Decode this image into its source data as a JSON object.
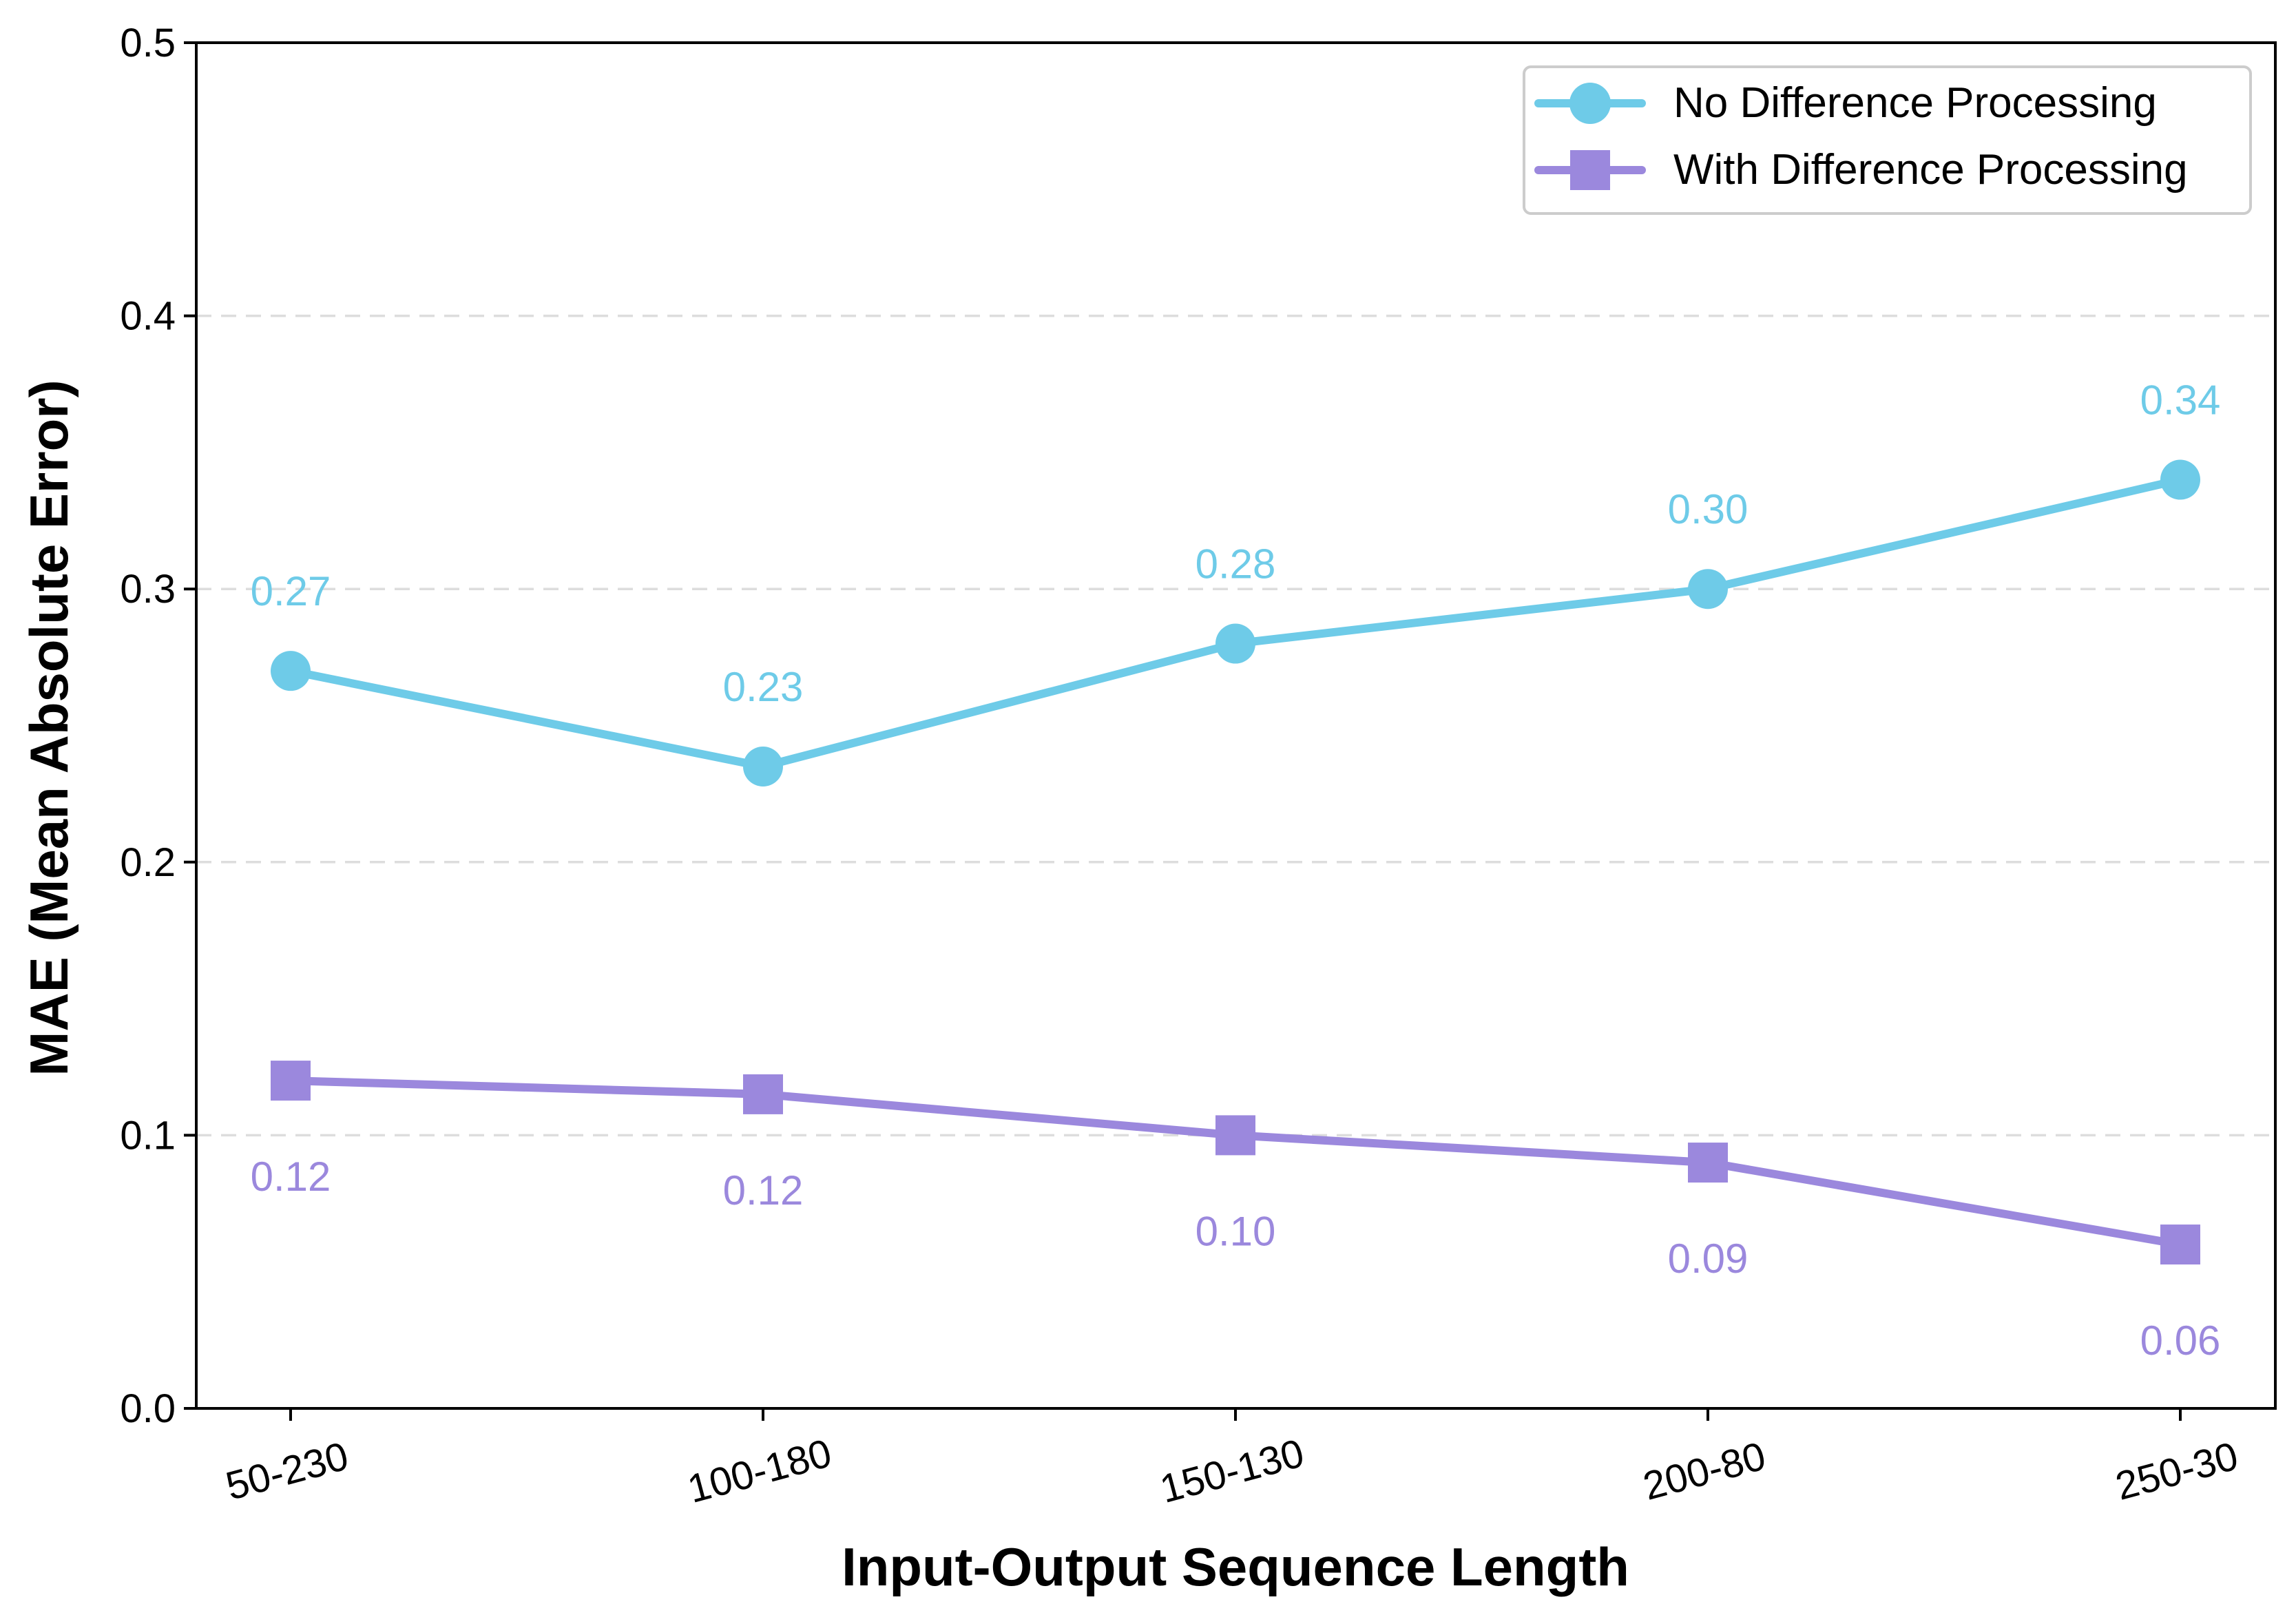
{
  "chart_data": {
    "type": "line",
    "title": "",
    "xlabel": "Input-Output Sequence Length",
    "ylabel": "MAE (Mean Absolute Error)",
    "categories": [
      "50-230",
      "100-180",
      "150-130",
      "200-80",
      "250-30"
    ],
    "ylim": [
      0,
      0.5
    ],
    "yticks": [
      "0.0",
      "0.1",
      "0.2",
      "0.3",
      "0.4",
      "0.5"
    ],
    "grid": "y-dashed",
    "legend_position": "top-right",
    "series": [
      {
        "name": "No Difference Processing",
        "marker": "circle",
        "color": "#6ecbe8",
        "values": [
          0.27,
          0.235,
          0.28,
          0.3,
          0.34
        ],
        "labels": [
          "0.27",
          "0.23",
          "0.28",
          "0.30",
          "0.34"
        ],
        "label_position": "above"
      },
      {
        "name": "With Difference Processing",
        "marker": "square",
        "color": "#9b88dd",
        "values": [
          0.12,
          0.115,
          0.1,
          0.09,
          0.06
        ],
        "labels": [
          "0.12",
          "0.12",
          "0.10",
          "0.09",
          "0.06"
        ],
        "label_position": "below"
      }
    ]
  }
}
